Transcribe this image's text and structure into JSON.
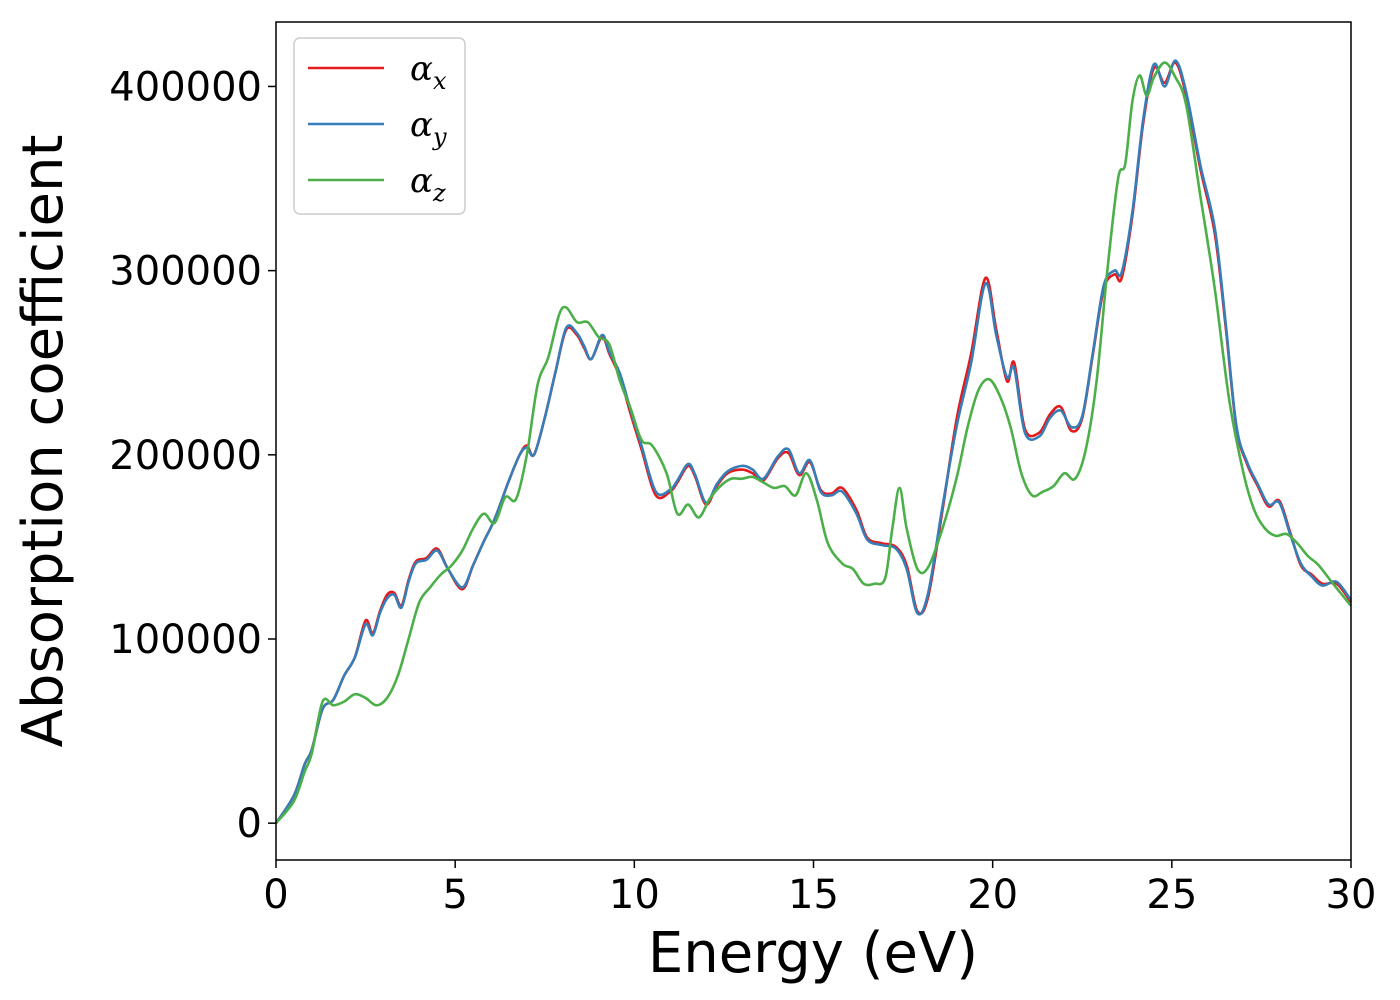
{
  "chart_data": {
    "type": "line",
    "title": "",
    "xlabel": "Energy (eV)",
    "ylabel": "Absorption coefficient",
    "xlim": [
      0,
      30
    ],
    "ylim": [
      -20000,
      435000
    ],
    "xticks": [
      0,
      5,
      10,
      15,
      20,
      25,
      30
    ],
    "xtick_labels": [
      "0",
      "5",
      "10",
      "15",
      "20",
      "25",
      "30"
    ],
    "yticks": [
      0,
      100000,
      200000,
      300000,
      400000
    ],
    "ytick_labels": [
      "0",
      "100000",
      "200000",
      "300000",
      "400000"
    ],
    "grid": false,
    "legend_position": "top-left",
    "series": [
      {
        "name": "α_x",
        "label_base": "α",
        "label_sub": "x",
        "color": "#e41a1c",
        "points": [
          [
            0,
            0
          ],
          [
            0.5,
            15000
          ],
          [
            0.8,
            32000
          ],
          [
            1.0,
            40000
          ],
          [
            1.3,
            62000
          ],
          [
            1.6,
            67000
          ],
          [
            1.9,
            80000
          ],
          [
            2.2,
            90000
          ],
          [
            2.5,
            110000
          ],
          [
            2.7,
            103000
          ],
          [
            2.9,
            115000
          ],
          [
            3.1,
            124000
          ],
          [
            3.3,
            125000
          ],
          [
            3.5,
            118000
          ],
          [
            3.7,
            132000
          ],
          [
            3.9,
            142000
          ],
          [
            4.2,
            144000
          ],
          [
            4.5,
            149000
          ],
          [
            4.8,
            138000
          ],
          [
            5.2,
            127000
          ],
          [
            5.5,
            140000
          ],
          [
            5.8,
            153000
          ],
          [
            6.1,
            165000
          ],
          [
            6.5,
            186000
          ],
          [
            6.8,
            200000
          ],
          [
            7.0,
            205000
          ],
          [
            7.2,
            200000
          ],
          [
            7.5,
            220000
          ],
          [
            7.8,
            245000
          ],
          [
            8.1,
            268000
          ],
          [
            8.4,
            265000
          ],
          [
            8.6,
            258000
          ],
          [
            8.8,
            252000
          ],
          [
            9.1,
            264000
          ],
          [
            9.3,
            255000
          ],
          [
            9.6,
            242000
          ],
          [
            9.9,
            222000
          ],
          [
            10.2,
            203000
          ],
          [
            10.6,
            178000
          ],
          [
            11.0,
            180000
          ],
          [
            11.2,
            185000
          ],
          [
            11.5,
            194000
          ],
          [
            11.7,
            188000
          ],
          [
            12.0,
            173000
          ],
          [
            12.3,
            183000
          ],
          [
            12.6,
            190000
          ],
          [
            13.0,
            192000
          ],
          [
            13.3,
            190000
          ],
          [
            13.6,
            186000
          ],
          [
            14.0,
            198000
          ],
          [
            14.3,
            201000
          ],
          [
            14.6,
            189000
          ],
          [
            14.9,
            196000
          ],
          [
            15.2,
            181000
          ],
          [
            15.5,
            179000
          ],
          [
            15.8,
            182000
          ],
          [
            16.2,
            170000
          ],
          [
            16.5,
            155000
          ],
          [
            16.9,
            152000
          ],
          [
            17.3,
            150000
          ],
          [
            17.6,
            140000
          ],
          [
            17.9,
            115000
          ],
          [
            18.2,
            123000
          ],
          [
            18.6,
            170000
          ],
          [
            19.0,
            220000
          ],
          [
            19.4,
            255000
          ],
          [
            19.8,
            296000
          ],
          [
            20.1,
            268000
          ],
          [
            20.4,
            240000
          ],
          [
            20.6,
            250000
          ],
          [
            20.9,
            214000
          ],
          [
            21.3,
            212000
          ],
          [
            21.6,
            222000
          ],
          [
            21.9,
            226000
          ],
          [
            22.2,
            213000
          ],
          [
            22.5,
            220000
          ],
          [
            22.8,
            255000
          ],
          [
            23.1,
            290000
          ],
          [
            23.4,
            298000
          ],
          [
            23.6,
            296000
          ],
          [
            23.9,
            330000
          ],
          [
            24.2,
            380000
          ],
          [
            24.5,
            410000
          ],
          [
            24.8,
            402000
          ],
          [
            25.1,
            413000
          ],
          [
            25.4,
            395000
          ],
          [
            25.8,
            355000
          ],
          [
            26.2,
            320000
          ],
          [
            26.5,
            270000
          ],
          [
            26.8,
            215000
          ],
          [
            27.1,
            195000
          ],
          [
            27.4,
            183000
          ],
          [
            27.7,
            172000
          ],
          [
            28.0,
            175000
          ],
          [
            28.3,
            158000
          ],
          [
            28.6,
            140000
          ],
          [
            28.9,
            135000
          ],
          [
            29.2,
            130000
          ],
          [
            29.6,
            130000
          ],
          [
            30.0,
            120000
          ]
        ]
      },
      {
        "name": "α_y",
        "label_base": "α",
        "label_sub": "y",
        "color": "#377eb8",
        "points": [
          [
            0,
            0
          ],
          [
            0.5,
            15000
          ],
          [
            0.8,
            32000
          ],
          [
            1.0,
            40000
          ],
          [
            1.3,
            62000
          ],
          [
            1.6,
            67000
          ],
          [
            1.9,
            80000
          ],
          [
            2.2,
            90000
          ],
          [
            2.5,
            108000
          ],
          [
            2.7,
            102000
          ],
          [
            2.9,
            114000
          ],
          [
            3.1,
            122000
          ],
          [
            3.3,
            124000
          ],
          [
            3.5,
            117000
          ],
          [
            3.7,
            131000
          ],
          [
            3.9,
            141000
          ],
          [
            4.2,
            143000
          ],
          [
            4.5,
            148000
          ],
          [
            4.8,
            138000
          ],
          [
            5.2,
            128000
          ],
          [
            5.5,
            140000
          ],
          [
            5.8,
            153000
          ],
          [
            6.1,
            165000
          ],
          [
            6.5,
            186000
          ],
          [
            6.8,
            200000
          ],
          [
            7.0,
            204000
          ],
          [
            7.2,
            200000
          ],
          [
            7.5,
            220000
          ],
          [
            7.8,
            245000
          ],
          [
            8.1,
            269000
          ],
          [
            8.4,
            266000
          ],
          [
            8.6,
            259000
          ],
          [
            8.8,
            252000
          ],
          [
            9.1,
            265000
          ],
          [
            9.3,
            256000
          ],
          [
            9.6,
            244000
          ],
          [
            9.9,
            224000
          ],
          [
            10.2,
            205000
          ],
          [
            10.6,
            180000
          ],
          [
            11.0,
            181000
          ],
          [
            11.2,
            186000
          ],
          [
            11.5,
            195000
          ],
          [
            11.7,
            189000
          ],
          [
            12.0,
            174000
          ],
          [
            12.3,
            184000
          ],
          [
            12.6,
            191000
          ],
          [
            13.0,
            194000
          ],
          [
            13.3,
            192000
          ],
          [
            13.6,
            187000
          ],
          [
            14.0,
            199000
          ],
          [
            14.3,
            203000
          ],
          [
            14.6,
            190000
          ],
          [
            14.9,
            197000
          ],
          [
            15.2,
            180000
          ],
          [
            15.5,
            178000
          ],
          [
            15.8,
            180000
          ],
          [
            16.2,
            168000
          ],
          [
            16.5,
            154000
          ],
          [
            16.9,
            151000
          ],
          [
            17.3,
            149000
          ],
          [
            17.6,
            138000
          ],
          [
            17.9,
            114000
          ],
          [
            18.2,
            125000
          ],
          [
            18.6,
            172000
          ],
          [
            19.0,
            216000
          ],
          [
            19.4,
            250000
          ],
          [
            19.8,
            293000
          ],
          [
            20.1,
            265000
          ],
          [
            20.4,
            242000
          ],
          [
            20.6,
            247000
          ],
          [
            20.9,
            212000
          ],
          [
            21.3,
            210000
          ],
          [
            21.6,
            220000
          ],
          [
            21.9,
            224000
          ],
          [
            22.2,
            215000
          ],
          [
            22.5,
            221000
          ],
          [
            22.8,
            256000
          ],
          [
            23.1,
            292000
          ],
          [
            23.4,
            300000
          ],
          [
            23.6,
            299000
          ],
          [
            23.9,
            332000
          ],
          [
            24.2,
            382000
          ],
          [
            24.5,
            412000
          ],
          [
            24.8,
            400000
          ],
          [
            25.1,
            414000
          ],
          [
            25.4,
            397000
          ],
          [
            25.8,
            357000
          ],
          [
            26.2,
            323000
          ],
          [
            26.5,
            272000
          ],
          [
            26.8,
            216000
          ],
          [
            27.1,
            196000
          ],
          [
            27.4,
            184000
          ],
          [
            27.7,
            173000
          ],
          [
            28.0,
            174000
          ],
          [
            28.3,
            157000
          ],
          [
            28.6,
            141000
          ],
          [
            28.9,
            134000
          ],
          [
            29.2,
            129000
          ],
          [
            29.6,
            131000
          ],
          [
            30.0,
            121000
          ]
        ]
      },
      {
        "name": "α_z",
        "label_base": "α",
        "label_sub": "z",
        "color": "#4daf4a",
        "points": [
          [
            0,
            0
          ],
          [
            0.5,
            12000
          ],
          [
            0.8,
            28000
          ],
          [
            1.0,
            38000
          ],
          [
            1.3,
            66000
          ],
          [
            1.6,
            64000
          ],
          [
            1.9,
            66000
          ],
          [
            2.2,
            70000
          ],
          [
            2.5,
            68000
          ],
          [
            2.8,
            64000
          ],
          [
            3.1,
            68000
          ],
          [
            3.4,
            80000
          ],
          [
            3.7,
            100000
          ],
          [
            4.0,
            120000
          ],
          [
            4.3,
            128000
          ],
          [
            4.6,
            135000
          ],
          [
            4.9,
            140000
          ],
          [
            5.2,
            148000
          ],
          [
            5.5,
            160000
          ],
          [
            5.8,
            168000
          ],
          [
            6.1,
            163000
          ],
          [
            6.4,
            177000
          ],
          [
            6.7,
            176000
          ],
          [
            7.0,
            200000
          ],
          [
            7.3,
            238000
          ],
          [
            7.6,
            253000
          ],
          [
            7.9,
            276000
          ],
          [
            8.1,
            280000
          ],
          [
            8.4,
            272000
          ],
          [
            8.7,
            272000
          ],
          [
            9.0,
            264000
          ],
          [
            9.3,
            260000
          ],
          [
            9.6,
            240000
          ],
          [
            9.9,
            225000
          ],
          [
            10.2,
            208000
          ],
          [
            10.5,
            205000
          ],
          [
            10.9,
            190000
          ],
          [
            11.2,
            168000
          ],
          [
            11.5,
            173000
          ],
          [
            11.8,
            166000
          ],
          [
            12.1,
            176000
          ],
          [
            12.4,
            183000
          ],
          [
            12.7,
            187000
          ],
          [
            13.0,
            187000
          ],
          [
            13.3,
            188000
          ],
          [
            13.6,
            185000
          ],
          [
            13.9,
            182000
          ],
          [
            14.2,
            183000
          ],
          [
            14.5,
            178000
          ],
          [
            14.8,
            190000
          ],
          [
            15.1,
            175000
          ],
          [
            15.4,
            152000
          ],
          [
            15.8,
            141000
          ],
          [
            16.1,
            138000
          ],
          [
            16.4,
            130000
          ],
          [
            16.7,
            130000
          ],
          [
            17.0,
            133000
          ],
          [
            17.2,
            160000
          ],
          [
            17.4,
            182000
          ],
          [
            17.6,
            160000
          ],
          [
            17.9,
            138000
          ],
          [
            18.2,
            139000
          ],
          [
            18.6,
            160000
          ],
          [
            19.0,
            188000
          ],
          [
            19.3,
            215000
          ],
          [
            19.6,
            235000
          ],
          [
            19.9,
            241000
          ],
          [
            20.2,
            232000
          ],
          [
            20.5,
            215000
          ],
          [
            20.8,
            190000
          ],
          [
            21.1,
            178000
          ],
          [
            21.4,
            180000
          ],
          [
            21.7,
            183000
          ],
          [
            22.0,
            190000
          ],
          [
            22.3,
            187000
          ],
          [
            22.6,
            203000
          ],
          [
            22.9,
            240000
          ],
          [
            23.2,
            300000
          ],
          [
            23.5,
            350000
          ],
          [
            23.7,
            358000
          ],
          [
            23.9,
            392000
          ],
          [
            24.1,
            406000
          ],
          [
            24.3,
            395000
          ],
          [
            24.5,
            405000
          ],
          [
            24.8,
            413000
          ],
          [
            25.1,
            405000
          ],
          [
            25.4,
            390000
          ],
          [
            25.8,
            340000
          ],
          [
            26.2,
            290000
          ],
          [
            26.6,
            230000
          ],
          [
            27.0,
            190000
          ],
          [
            27.3,
            170000
          ],
          [
            27.6,
            160000
          ],
          [
            27.9,
            156000
          ],
          [
            28.2,
            157000
          ],
          [
            28.5,
            152000
          ],
          [
            28.8,
            145000
          ],
          [
            29.1,
            140000
          ],
          [
            29.5,
            130000
          ],
          [
            30.0,
            118000
          ]
        ]
      }
    ]
  }
}
